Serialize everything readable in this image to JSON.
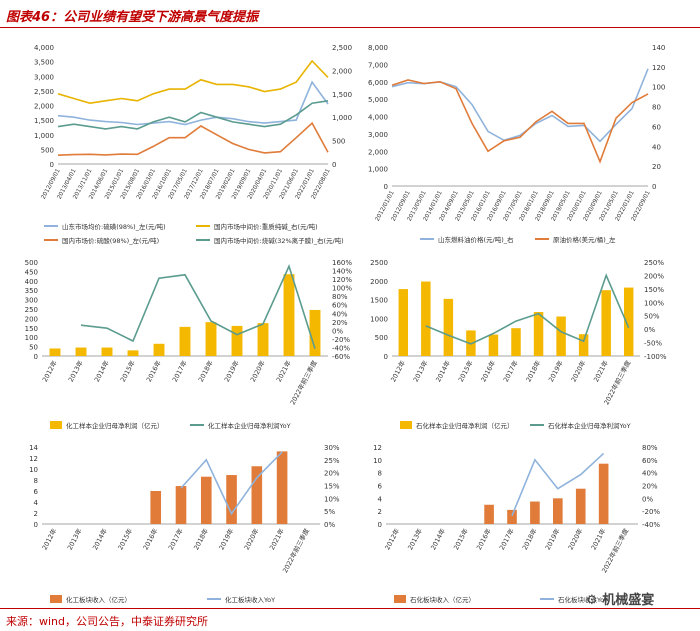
{
  "page": {
    "title": "图表46：公司业绩有望受下游高景气度提振",
    "source": "来源：wind，公司公告，中泰证券研究所",
    "watermark": "机械盛宴"
  },
  "chart_data": [
    {
      "id": "c1",
      "type": "line",
      "x": [
        "2012/09/01",
        "2013/04/01",
        "2013/11/01",
        "2014/06/01",
        "2015/01/01",
        "2015/08/01",
        "2016/03/01",
        "2016/10/01",
        "2017/05/01",
        "2017/12/01",
        "2018/07/01",
        "2019/02/01",
        "2019/09/01",
        "2020/04/01",
        "2020/11/01",
        "2021/06/01",
        "2022/01/01",
        "2022/08/01"
      ],
      "ylim": [
        0,
        4000
      ],
      "yticks": [
        "0",
        "500",
        "1,000",
        "1,500",
        "2,000",
        "2,500",
        "3,000",
        "3,500",
        "4,000"
      ],
      "y2lim": [
        0,
        2500
      ],
      "y2ticks": [
        "0",
        "500",
        "1,000",
        "1,500",
        "2,000",
        "2,500"
      ],
      "series": [
        {
          "name": "山东市场均价:硫磺(98%)_左(元/吨)",
          "axis": "left",
          "color": "#8fb3dc",
          "values": [
            1650,
            1600,
            1500,
            1450,
            1420,
            1350,
            1400,
            1450,
            1350,
            1500,
            1600,
            1550,
            1450,
            1400,
            1450,
            1500,
            2800,
            2050
          ]
        },
        {
          "name": "国内市场中间价:重质纯碱_右(元/吨)",
          "axis": "right",
          "color": "#e8b400",
          "values": [
            1500,
            1400,
            1300,
            1350,
            1400,
            1350,
            1500,
            1600,
            1600,
            1800,
            1700,
            1700,
            1650,
            1550,
            1600,
            1750,
            2200,
            1850
          ]
        },
        {
          "name": "国内市场价:硫酸(98%)_左(元/吨)",
          "axis": "left",
          "color": "#e07b39",
          "values": [
            300,
            320,
            330,
            310,
            340,
            330,
            600,
            900,
            900,
            1300,
            1000,
            700,
            500,
            380,
            420,
            900,
            1400,
            400
          ]
        },
        {
          "name": "国内市场中间价:烧碱(32%离子膜)_右(元/吨)",
          "axis": "right",
          "color": "#5b9c8f",
          "values": [
            800,
            850,
            800,
            750,
            800,
            750,
            900,
            1000,
            900,
            1100,
            1000,
            900,
            850,
            800,
            850,
            1050,
            1300,
            1350
          ]
        }
      ]
    },
    {
      "id": "c2",
      "type": "line",
      "x": [
        "2012/01/01",
        "2012/09/01",
        "2013/05/01",
        "2014/01/01",
        "2014/09/01",
        "2015/05/01",
        "2016/01/01",
        "2016/09/01",
        "2017/05/01",
        "2018/01/01",
        "2018/09/01",
        "2019/05/01",
        "2020/01/01",
        "2020/09/01",
        "2021/05/01",
        "2022/01/01",
        "2022/09/01"
      ],
      "ylim": [
        0,
        8000
      ],
      "yticks": [
        "0",
        "1,000",
        "2,000",
        "3,000",
        "4,000",
        "5,000",
        "6,000",
        "7,000",
        "8,000"
      ],
      "y2lim": [
        0,
        140
      ],
      "y2ticks": [
        "0",
        "20",
        "40",
        "60",
        "80",
        "100",
        "120",
        "140"
      ],
      "series": [
        {
          "name": "山东燃料油价格(元/吨)_右",
          "axis": "right",
          "color": "#8fb3dc",
          "values": [
            100,
            104,
            103,
            105,
            100,
            82,
            55,
            46,
            51,
            63,
            71,
            60,
            61,
            45,
            62,
            78,
            118
          ]
        },
        {
          "name": "原油价格(美元/桶)_左",
          "axis": "left",
          "color": "#e07b39",
          "values": [
            5800,
            6100,
            5900,
            6000,
            5600,
            3600,
            2000,
            2600,
            2800,
            3700,
            4300,
            3600,
            3600,
            1400,
            3900,
            4800,
            5300
          ]
        }
      ]
    },
    {
      "id": "c3",
      "type": "bar",
      "categories": [
        "2012年",
        "2013年",
        "2014年",
        "2015年",
        "2016年",
        "2017年",
        "2018年",
        "2019年",
        "2020年",
        "2021年",
        "2022年前三季度"
      ],
      "values": [
        40,
        45,
        45,
        30,
        65,
        155,
        180,
        160,
        175,
        435,
        245
      ],
      "line_values": [
        null,
        12,
        5,
        -25,
        122,
        130,
        22,
        -10,
        15,
        150,
        -43
      ],
      "ylim": [
        0,
        500
      ],
      "yticks": [
        "0",
        "50",
        "100",
        "150",
        "200",
        "250",
        "300",
        "350",
        "400",
        "450",
        "500"
      ],
      "y2lim": [
        -60,
        160
      ],
      "y2ticks": [
        "-60%",
        "-40%",
        "-20%",
        "0%",
        "20%",
        "40%",
        "60%",
        "80%",
        "100%",
        "120%",
        "140%",
        "160%"
      ],
      "legend": [
        "化工样本企业归母净利润（亿元）",
        "化工样本企业归母净利润YoY"
      ],
      "bar_color": "#f5b800",
      "line_color": "#5b9c8f"
    },
    {
      "id": "c4",
      "type": "bar",
      "categories": [
        "2012年",
        "2013年",
        "2014年",
        "2015年",
        "2016年",
        "2017年",
        "2018年",
        "2019年",
        "2020年",
        "2021年",
        "2022年前三季度"
      ],
      "values": [
        1780,
        1980,
        1520,
        680,
        570,
        740,
        1170,
        1050,
        580,
        1750,
        1820
      ],
      "line_values": [
        null,
        12,
        -23,
        -55,
        -16,
        30,
        58,
        -10,
        -45,
        200,
        5
      ],
      "ylim": [
        0,
        2500
      ],
      "yticks": [
        "0",
        "500",
        "1000",
        "1500",
        "2000",
        "2500"
      ],
      "y2lim": [
        -100,
        250
      ],
      "y2ticks": [
        "-100%",
        "-50%",
        "0%",
        "50%",
        "100%",
        "150%",
        "200%",
        "250%"
      ],
      "legend": [
        "石化样本企业归母净利润（亿元）",
        "石化样本企业归母净利润YoY"
      ],
      "bar_color": "#f5b800",
      "line_color": "#5b9c8f"
    },
    {
      "id": "c5",
      "type": "bar",
      "categories": [
        "2012年",
        "2013年",
        "2014年",
        "2015年",
        "2016年",
        "2017年",
        "2018年",
        "2019年",
        "2020年",
        "2021年",
        "2022年前三季度"
      ],
      "values": [
        null,
        null,
        null,
        null,
        6,
        6.9,
        8.6,
        8.9,
        10.5,
        13.2,
        null
      ],
      "line_values": [
        null,
        null,
        null,
        null,
        null,
        14,
        25,
        4,
        18,
        28,
        null
      ],
      "ylim": [
        0,
        14
      ],
      "yticks": [
        "0",
        "2",
        "4",
        "6",
        "8",
        "10",
        "12",
        "14"
      ],
      "y2lim": [
        0,
        30
      ],
      "y2ticks": [
        "0%",
        "5%",
        "10%",
        "15%",
        "20%",
        "25%",
        "30%"
      ],
      "legend": [
        "化工板块收入（亿元）",
        "化工板块收入YoY"
      ],
      "bar_color": "#e07b39",
      "line_color": "#8fb3dc"
    },
    {
      "id": "c6",
      "type": "bar",
      "categories": [
        "2012年",
        "2013年",
        "2014年",
        "2015年",
        "2016年",
        "2017年",
        "2018年",
        "2019年",
        "2020年",
        "2021年",
        "2022年前三季度"
      ],
      "values": [
        null,
        null,
        null,
        null,
        3,
        2.2,
        3.5,
        4,
        5.5,
        9.4,
        null
      ],
      "line_values": [
        null,
        null,
        null,
        null,
        null,
        -27,
        60,
        15,
        37,
        70,
        null
      ],
      "ylim": [
        0,
        12
      ],
      "yticks": [
        "0",
        "2",
        "4",
        "6",
        "8",
        "10",
        "12"
      ],
      "y2lim": [
        -40,
        80
      ],
      "y2ticks": [
        "-40%",
        "-20%",
        "0%",
        "20%",
        "40%",
        "60%",
        "80%"
      ],
      "legend": [
        "石化板块收入（亿元）",
        "石化板块收入YoY"
      ],
      "bar_color": "#e07b39",
      "line_color": "#8fb3dc"
    }
  ]
}
